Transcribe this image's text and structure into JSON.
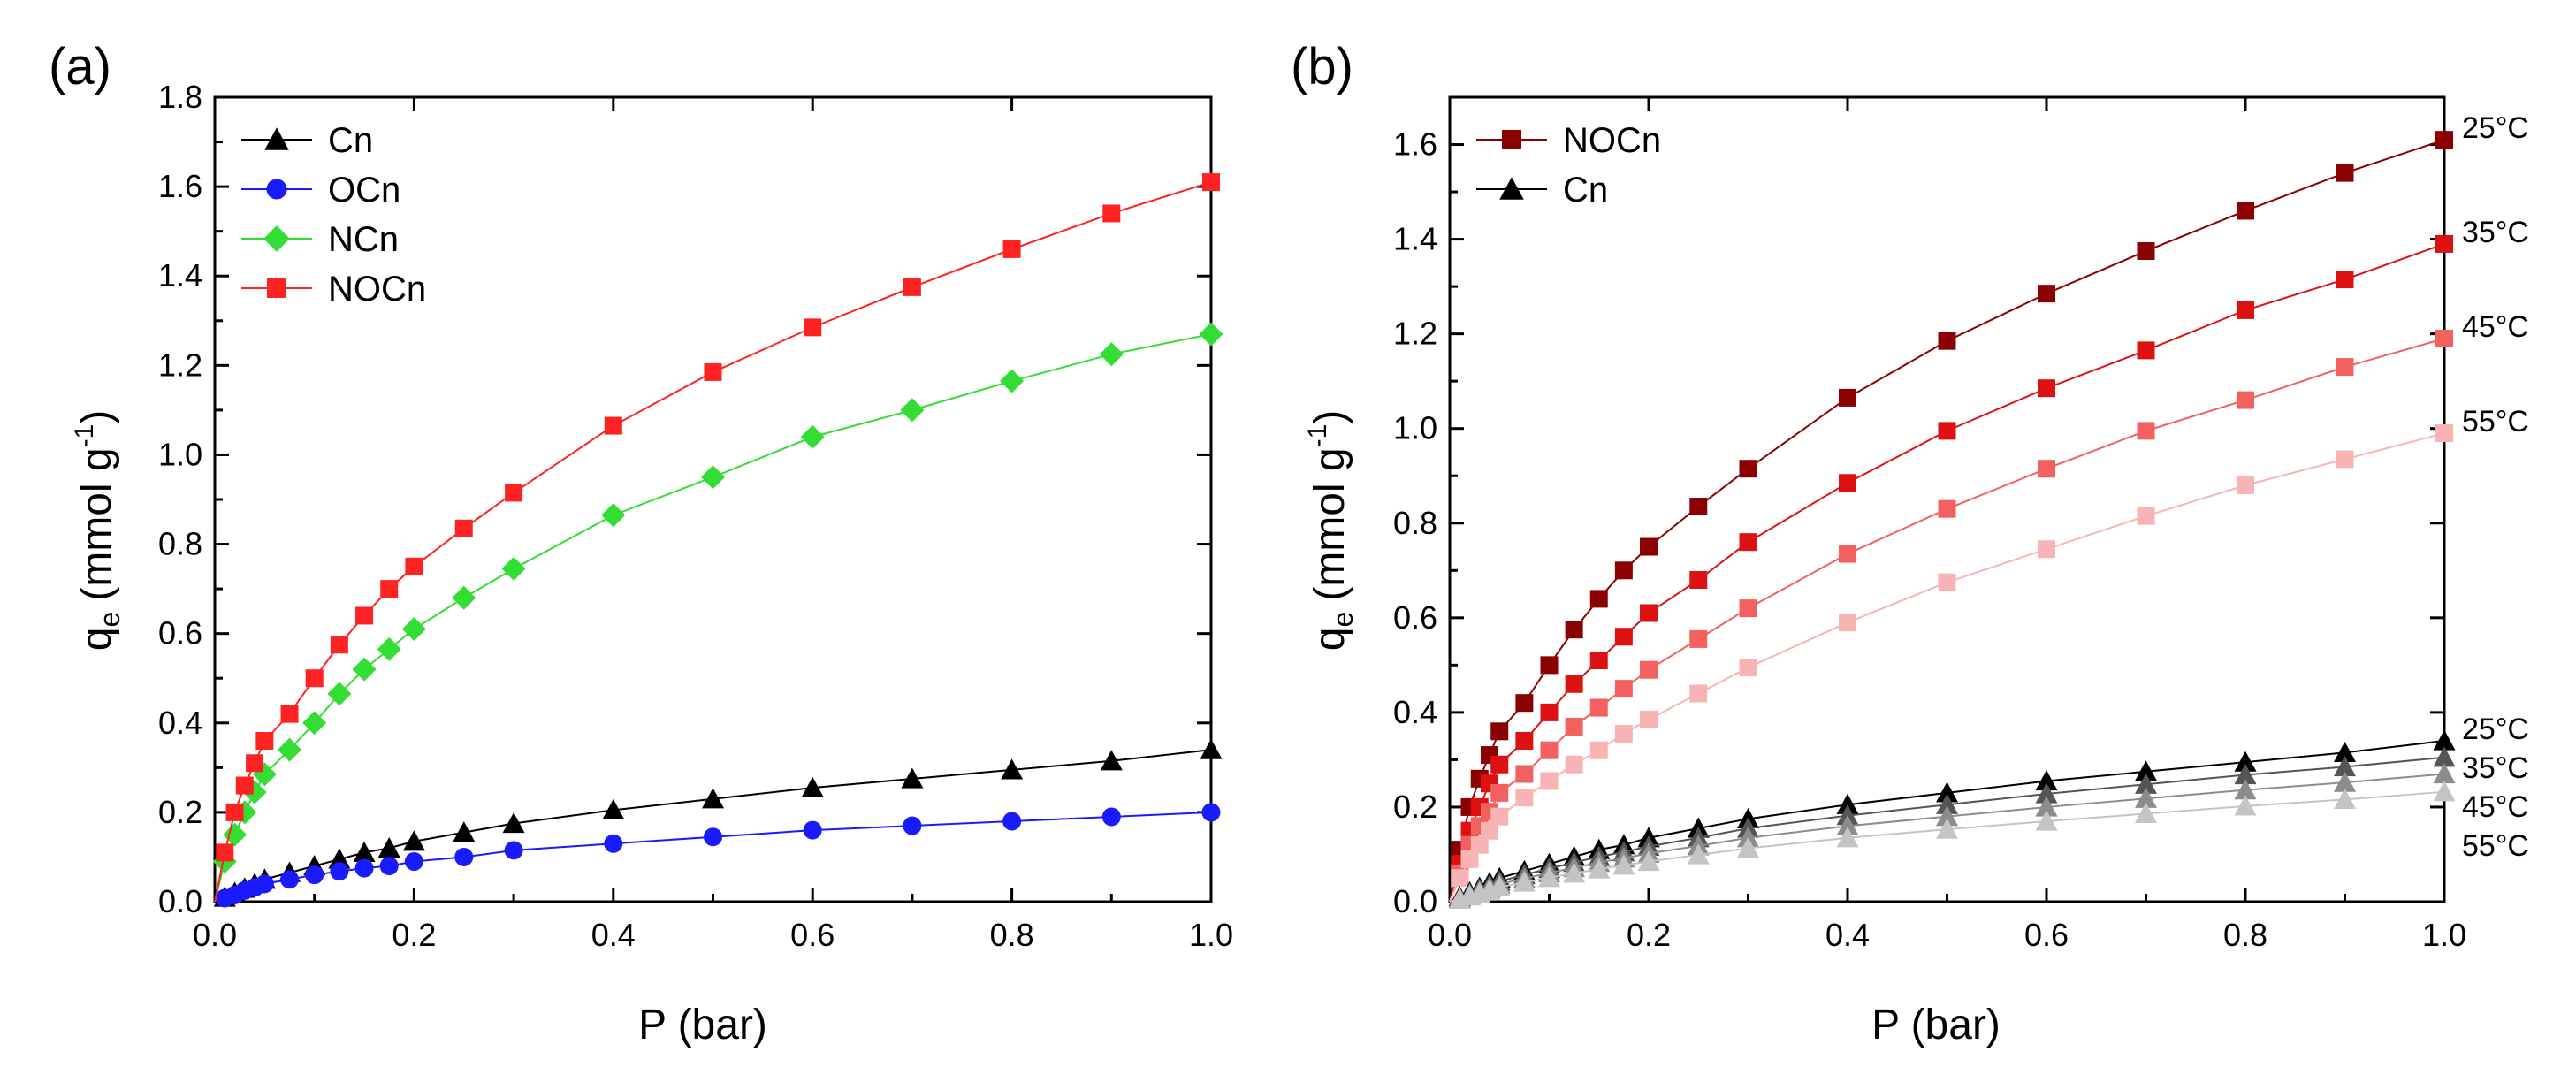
{
  "chart_data": [
    {
      "panel_label": "(a)",
      "type": "line",
      "xlabel": "P (bar)",
      "ylabel": "q",
      "ylabel_sub": "e",
      "ylabel_unit_pre": "(mmol g",
      "ylabel_sup": "-1",
      "ylabel_unit_post": ")",
      "xlim": [
        0,
        1.0
      ],
      "ylim": [
        0,
        1.8
      ],
      "xticks": [
        "0.0",
        "0.2",
        "0.4",
        "0.6",
        "0.8",
        "1.0"
      ],
      "yticks": [
        "0.0",
        "0.2",
        "0.4",
        "0.6",
        "0.8",
        "1.0",
        "1.2",
        "1.4",
        "1.6",
        "1.8"
      ],
      "legend_position": "top-left",
      "x": [
        0.01,
        0.02,
        0.03,
        0.04,
        0.05,
        0.075,
        0.1,
        0.125,
        0.15,
        0.175,
        0.2,
        0.25,
        0.3,
        0.4,
        0.5,
        0.6,
        0.7,
        0.8,
        0.9,
        1.0
      ],
      "series": [
        {
          "name": "Cn",
          "color": "#000000",
          "marker": "triangle",
          "values": [
            0.01,
            0.02,
            0.03,
            0.04,
            0.05,
            0.065,
            0.08,
            0.095,
            0.11,
            0.12,
            0.135,
            0.155,
            0.175,
            0.205,
            0.23,
            0.255,
            0.275,
            0.295,
            0.315,
            0.34
          ]
        },
        {
          "name": "OCn",
          "color": "#1a1aff",
          "marker": "circle",
          "values": [
            0.008,
            0.015,
            0.025,
            0.032,
            0.04,
            0.05,
            0.06,
            0.068,
            0.075,
            0.08,
            0.09,
            0.1,
            0.115,
            0.13,
            0.145,
            0.16,
            0.17,
            0.18,
            0.19,
            0.2
          ]
        },
        {
          "name": "NCn",
          "color": "#33dd33",
          "marker": "diamond",
          "values": [
            0.09,
            0.15,
            0.2,
            0.245,
            0.285,
            0.34,
            0.4,
            0.465,
            0.52,
            0.565,
            0.61,
            0.68,
            0.745,
            0.865,
            0.95,
            1.04,
            1.1,
            1.165,
            1.225,
            1.27
          ]
        },
        {
          "name": "NOCn",
          "color": "#ff2222",
          "marker": "square",
          "values": [
            0.11,
            0.2,
            0.26,
            0.31,
            0.36,
            0.42,
            0.5,
            0.575,
            0.64,
            0.7,
            0.75,
            0.835,
            0.915,
            1.065,
            1.185,
            1.285,
            1.375,
            1.46,
            1.54,
            1.61
          ]
        }
      ]
    },
    {
      "panel_label": "(b)",
      "type": "line",
      "xlabel": "P (bar)",
      "ylabel": "q",
      "ylabel_sub": "e",
      "ylabel_unit_pre": "(mmol g",
      "ylabel_sup": "-1",
      "ylabel_unit_post": ")",
      "xlim": [
        0,
        1.0
      ],
      "ylim": [
        0,
        1.7
      ],
      "xticks": [
        "0.0",
        "0.2",
        "0.4",
        "0.6",
        "0.8",
        "1.0"
      ],
      "yticks": [
        "0.0",
        "0.2",
        "0.4",
        "0.6",
        "0.8",
        "1.0",
        "1.2",
        "1.4",
        "1.6"
      ],
      "legend_position": "top-left",
      "legend": [
        {
          "name": "NOCn",
          "color": "#8b0000",
          "marker": "square"
        },
        {
          "name": "Cn",
          "color": "#000000",
          "marker": "triangle"
        }
      ],
      "x": [
        0.01,
        0.02,
        0.03,
        0.04,
        0.05,
        0.075,
        0.1,
        0.125,
        0.15,
        0.175,
        0.2,
        0.25,
        0.3,
        0.4,
        0.5,
        0.6,
        0.7,
        0.8,
        0.9,
        1.0
      ],
      "series": [
        {
          "name": "NOCn 25°C",
          "label": "25°C",
          "color": "#8b0000",
          "marker": "square",
          "values": [
            0.11,
            0.2,
            0.26,
            0.31,
            0.36,
            0.42,
            0.5,
            0.575,
            0.64,
            0.7,
            0.75,
            0.835,
            0.915,
            1.065,
            1.185,
            1.285,
            1.375,
            1.46,
            1.54,
            1.61
          ]
        },
        {
          "name": "NOCn 35°C",
          "label": "35°C",
          "color": "#dd1111",
          "marker": "square",
          "values": [
            0.08,
            0.15,
            0.2,
            0.25,
            0.29,
            0.34,
            0.4,
            0.46,
            0.51,
            0.56,
            0.61,
            0.68,
            0.76,
            0.885,
            0.995,
            1.085,
            1.165,
            1.25,
            1.315,
            1.39
          ]
        },
        {
          "name": "NOCn 45°C",
          "label": "45°C",
          "color": "#f26060",
          "marker": "square",
          "values": [
            0.06,
            0.12,
            0.16,
            0.19,
            0.23,
            0.27,
            0.32,
            0.37,
            0.41,
            0.45,
            0.49,
            0.555,
            0.62,
            0.735,
            0.83,
            0.915,
            0.995,
            1.06,
            1.13,
            1.19
          ]
        },
        {
          "name": "NOCn 55°C",
          "label": "55°C",
          "color": "#f8b4b4",
          "marker": "square",
          "values": [
            0.05,
            0.09,
            0.12,
            0.15,
            0.18,
            0.22,
            0.255,
            0.29,
            0.32,
            0.355,
            0.385,
            0.44,
            0.495,
            0.59,
            0.675,
            0.745,
            0.815,
            0.88,
            0.935,
            0.99
          ]
        },
        {
          "name": "Cn 25°C",
          "label": "25°C",
          "color": "#000000",
          "marker": "triangle",
          "values": [
            0.01,
            0.02,
            0.03,
            0.04,
            0.05,
            0.065,
            0.08,
            0.095,
            0.11,
            0.12,
            0.135,
            0.155,
            0.175,
            0.205,
            0.23,
            0.255,
            0.275,
            0.295,
            0.315,
            0.34
          ]
        },
        {
          "name": "Cn 35°C",
          "label": "35°C",
          "color": "#555555",
          "marker": "triangle",
          "values": [
            0.008,
            0.017,
            0.026,
            0.034,
            0.043,
            0.057,
            0.07,
            0.083,
            0.095,
            0.105,
            0.117,
            0.135,
            0.155,
            0.182,
            0.205,
            0.228,
            0.248,
            0.268,
            0.285,
            0.305
          ]
        },
        {
          "name": "Cn 45°C",
          "label": "45°C",
          "color": "#8c8c8c",
          "marker": "triangle",
          "values": [
            0.006,
            0.014,
            0.022,
            0.029,
            0.037,
            0.049,
            0.061,
            0.072,
            0.083,
            0.092,
            0.102,
            0.118,
            0.135,
            0.16,
            0.18,
            0.2,
            0.218,
            0.236,
            0.252,
            0.27
          ]
        },
        {
          "name": "Cn 55°C",
          "label": "55°C",
          "color": "#c4c4c4",
          "marker": "triangle",
          "values": [
            0.005,
            0.012,
            0.018,
            0.024,
            0.031,
            0.041,
            0.051,
            0.06,
            0.069,
            0.077,
            0.085,
            0.099,
            0.113,
            0.135,
            0.153,
            0.17,
            0.186,
            0.202,
            0.216,
            0.232
          ]
        }
      ]
    }
  ]
}
